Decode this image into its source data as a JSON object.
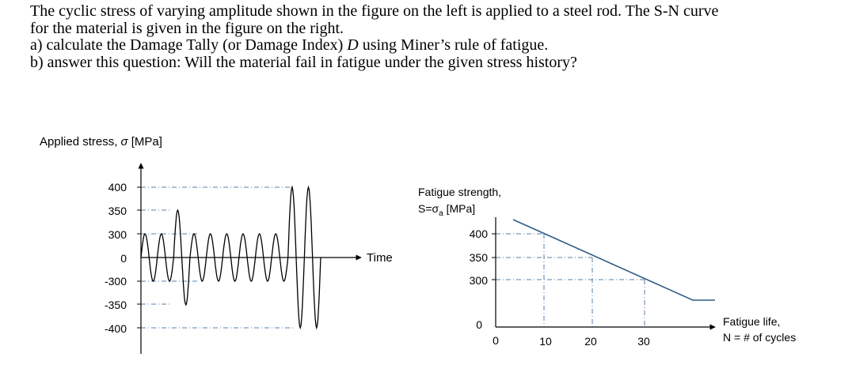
{
  "problem": {
    "line1": "The cyclic stress of varying amplitude shown in the figure on the left is applied to a steel rod. The S-N curve",
    "line2": "for the material is given in the figure on the right.",
    "line3a_pre": "a) calculate the Damage Tally (or Damage Index) ",
    "line3a_var": "D",
    "line3a_post": " using Miner’s rule of fatigue.",
    "line4": "b) answer this question: Will the material fail in fatigue under the given stress history?"
  },
  "left_figure": {
    "y_title_pre": "Applied stress, ",
    "y_title_sym": "σ",
    "y_title_post": " [MPa]",
    "y_ticks": [
      "400",
      "350",
      "300",
      "0",
      "-300",
      "-350",
      "-400"
    ],
    "x_label": "Time"
  },
  "right_figure": {
    "y_title_line1": "Fatigue strength,",
    "y_title_line2_pre": "S=σ",
    "y_title_line2_sub": "a",
    "y_title_line2_post": " [MPa]",
    "y_ticks": [
      "400",
      "350",
      "300",
      "0"
    ],
    "x_ticks": [
      "0",
      "10",
      "20",
      "30"
    ],
    "x_label_line1": "Fatigue life,",
    "x_label_line2": "N = # of cycles"
  },
  "chart_data": [
    {
      "type": "line",
      "description_source": "left figure",
      "y_ticks": [
        400,
        350,
        300,
        0,
        -300,
        -350,
        -400
      ],
      "ylabel": "Applied stress, σ [MPa]",
      "xlabel": "Time",
      "cycle_amplitudes": [
        300,
        300,
        350,
        300,
        300,
        300,
        300,
        300,
        300,
        400,
        400
      ]
    },
    {
      "type": "line",
      "description_source": "right figure",
      "ylabel": "Fatigue strength, S=σa [MPa]",
      "xlabel": "Fatigue life, N = # of cycles",
      "x": [
        10,
        20,
        30
      ],
      "y": [
        400,
        350,
        300
      ],
      "x_ticks": [
        0,
        10,
        20,
        30
      ],
      "y_ticks": [
        0,
        300,
        350,
        400
      ]
    }
  ]
}
